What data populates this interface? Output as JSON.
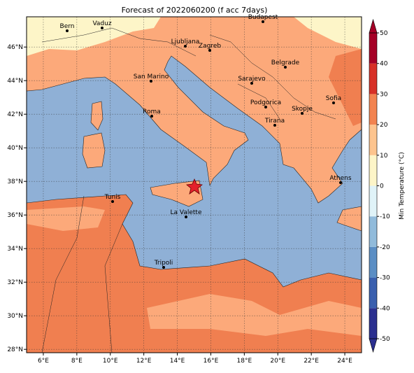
{
  "title": "Forecast of 2022060200 (f acc 7days)",
  "axes": {
    "xlim": [
      5,
      25
    ],
    "ylim": [
      27.8,
      47.8
    ],
    "xticks": [
      {
        "value": 6,
        "label": "6°E"
      },
      {
        "value": 8,
        "label": "8°E"
      },
      {
        "value": 10,
        "label": "10°E"
      },
      {
        "value": 12,
        "label": "12°E"
      },
      {
        "value": 14,
        "label": "14°E"
      },
      {
        "value": 16,
        "label": "16°E"
      },
      {
        "value": 18,
        "label": "18°E"
      },
      {
        "value": 20,
        "label": "20°E"
      },
      {
        "value": 22,
        "label": "22°E"
      },
      {
        "value": 24,
        "label": "24°E"
      }
    ],
    "yticks": [
      {
        "value": 28,
        "label": "28°N"
      },
      {
        "value": 30,
        "label": "30°N"
      },
      {
        "value": 32,
        "label": "32°N"
      },
      {
        "value": 34,
        "label": "34°N"
      },
      {
        "value": 36,
        "label": "36°N"
      },
      {
        "value": 38,
        "label": "38°N"
      },
      {
        "value": 40,
        "label": "40°N"
      },
      {
        "value": 42,
        "label": "42°N"
      },
      {
        "value": 44,
        "label": "44°N"
      },
      {
        "value": 46,
        "label": "46°N"
      }
    ]
  },
  "cities": [
    "Bern",
    "Vaduz",
    "Budapest",
    "Ljubljana",
    "Zagreb",
    "Belgrade",
    "Sarajevo",
    "San Marino",
    "Sofia",
    "Podgorica",
    "Skopje",
    "Roma",
    "Tirana",
    "Athens",
    "Tunis",
    "La Valette",
    "Tripoli"
  ],
  "colorbar": {
    "label": "Min Temperature (°C)",
    "clim": [
      -50,
      50
    ],
    "ticks": [
      -50,
      -40,
      -30,
      -20,
      -10,
      0,
      10,
      20,
      30,
      40,
      50
    ],
    "colors": [
      "#2b2f8f",
      "#3a5fae",
      "#5b8ec4",
      "#91bbdb",
      "#e0f3f8",
      "#fdf5c8",
      "#fdc48e",
      "#f28350",
      "#d73027",
      "#a50026"
    ]
  }
}
